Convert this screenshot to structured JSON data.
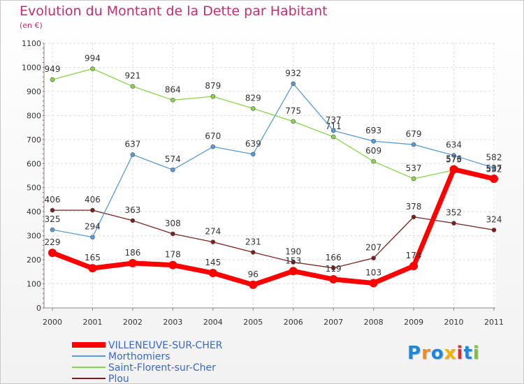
{
  "title": "Evolution du Montant de la Dette par Habitant",
  "subtitle": "(en €)",
  "logo": {
    "text": "Proxiti",
    "letters": [
      "P",
      "r",
      "o",
      "x",
      "i",
      "t",
      "i"
    ],
    "colors": [
      "#1e88d8",
      "#f28c1e",
      "#1e88d8",
      "#f0b400",
      "#d83030",
      "#1e88d8",
      "#7cc242"
    ]
  },
  "chart_data": {
    "type": "line",
    "title": "Evolution du Montant de la Dette par Habitant",
    "ylabel": "(en €)",
    "ylim": [
      0,
      1100
    ],
    "yticks": [
      0,
      100,
      200,
      300,
      400,
      500,
      600,
      700,
      800,
      900,
      1000,
      1100
    ],
    "x": [
      "2000",
      "2001",
      "2002",
      "2003",
      "2004",
      "2005",
      "2006",
      "2007",
      "2008",
      "2009",
      "2010",
      "2011"
    ],
    "grid": true,
    "legend": "bottom-left",
    "series": [
      {
        "name": "Plou",
        "color": "#7a1f1f",
        "values": [
          406,
          406,
          363,
          308,
          274,
          231,
          190,
          166,
          207,
          378,
          352,
          324
        ],
        "labels": [
          "406",
          "406",
          "363",
          "308",
          "274",
          "231",
          "190",
          "166",
          "207",
          "378",
          "352",
          "324"
        ]
      },
      {
        "name": "Saint-Florent-sur-Cher",
        "color": "#88d44a",
        "values": [
          949,
          994,
          921,
          864,
          879,
          829,
          775,
          711,
          609,
          537,
          573,
          532
        ],
        "labels": [
          "949",
          "994",
          "921",
          "864",
          "879",
          "829",
          "775",
          "711",
          "609",
          "537",
          "573",
          "532"
        ]
      },
      {
        "name": "Morthomiers",
        "color": "#5a9bd5",
        "values": [
          325,
          294,
          637,
          574,
          670,
          639,
          932,
          737,
          693,
          679,
          634,
          582
        ],
        "labels": [
          "325",
          "294",
          "637",
          "574",
          "670",
          "639",
          "932",
          "737",
          "693",
          "679",
          "634",
          "582"
        ]
      },
      {
        "name": "VILLENEUVE-SUR-CHER",
        "color": "#ff0000",
        "values": [
          229,
          165,
          186,
          178,
          145,
          96,
          153,
          119,
          103,
          174,
          576,
          537
        ],
        "labels": [
          "229",
          "165",
          "186",
          "178",
          "145",
          "96",
          "153",
          "119",
          "103",
          "174",
          "576",
          "537"
        ]
      }
    ],
    "legend_order": [
      "VILLENEUVE-SUR-CHER",
      "Morthomiers",
      "Saint-Florent-sur-Cher",
      "Plou"
    ]
  }
}
